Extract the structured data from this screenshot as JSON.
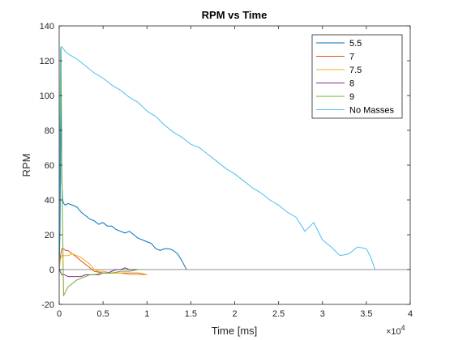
{
  "chart_data": {
    "type": "line",
    "title": "RPM vs Time",
    "xlabel": "Time [ms]",
    "ylabel": "RPM",
    "x_exponent": "×10^4",
    "xlim": [
      0,
      40000
    ],
    "ylim": [
      -20,
      140
    ],
    "x_ticks": [
      0,
      5000,
      10000,
      15000,
      20000,
      25000,
      30000,
      35000,
      40000
    ],
    "x_tick_labels": [
      "0",
      "0.5",
      "1",
      "1.5",
      "2",
      "2.5",
      "3",
      "3.5",
      "4"
    ],
    "y_ticks": [
      -20,
      0,
      20,
      40,
      60,
      80,
      100,
      120,
      140
    ],
    "y_tick_labels": [
      "-20",
      "0",
      "20",
      "40",
      "60",
      "80",
      "100",
      "120",
      "140"
    ],
    "grid": false,
    "legend_position": "top-right",
    "baseline": 0,
    "series": [
      {
        "name": "5.5",
        "color": "#0072bd",
        "x": [
          0,
          80,
          150,
          220,
          300,
          400,
          500,
          700,
          1000,
          1500,
          2000,
          2500,
          3000,
          3500,
          4000,
          4500,
          5000,
          5500,
          6000,
          6500,
          7000,
          7500,
          8000,
          8500,
          9000,
          9500,
          10000,
          10500,
          11000,
          11500,
          12000,
          12500,
          13000,
          13500,
          14000,
          14500
        ],
        "y": [
          0,
          20,
          60,
          100,
          50,
          40,
          38,
          37,
          38,
          37,
          36,
          33,
          31,
          29,
          28,
          26,
          27,
          25,
          25,
          23,
          22,
          21,
          22,
          20,
          18,
          17,
          16,
          15,
          12,
          11,
          12,
          12,
          11,
          9,
          5,
          0
        ]
      },
      {
        "name": "7",
        "color": "#d95319",
        "x": [
          0,
          150,
          300,
          500,
          700,
          1000,
          1500,
          2000,
          2500,
          3000,
          4000,
          5000,
          6000,
          7000,
          8000,
          9000,
          10000
        ],
        "y": [
          0,
          8,
          12,
          12,
          11,
          11,
          9,
          7,
          5,
          3,
          -1,
          -2,
          -2,
          -2,
          -2,
          -2,
          -3
        ]
      },
      {
        "name": "7.5",
        "color": "#edb120",
        "x": [
          0,
          150,
          300,
          600,
          1000,
          1500,
          2000,
          2500,
          3000,
          3500,
          4000,
          4500,
          5000,
          6000,
          7000,
          8000,
          9000,
          10000
        ],
        "y": [
          0,
          6,
          8,
          8,
          8,
          9,
          8,
          7,
          5,
          3,
          0,
          -1,
          -1,
          -2,
          -2,
          -3,
          -3,
          -3
        ]
      },
      {
        "name": "8",
        "color": "#7e2f8e",
        "x": [
          0,
          300,
          600,
          1000,
          1500,
          2000,
          2500,
          3000,
          3500,
          4000,
          4500,
          5000,
          5500,
          6000,
          6500,
          7000,
          7500,
          8000,
          8500,
          9000,
          9500,
          10000
        ],
        "y": [
          0,
          -3,
          -3,
          -4,
          -4,
          -4,
          -4,
          -3,
          -3,
          -3,
          -3,
          -2,
          -2,
          -1,
          0,
          0,
          1,
          0,
          0,
          0,
          0,
          0
        ]
      },
      {
        "name": "9",
        "color": "#77ac30",
        "x": [
          0,
          100,
          200,
          300,
          500,
          700,
          1000,
          1500,
          2000,
          2500,
          3000,
          3500,
          4000,
          5000,
          6000,
          7000,
          8000,
          9000,
          10000
        ],
        "y": [
          0,
          80,
          128,
          60,
          -15,
          -13,
          -10,
          -8,
          -6,
          -5,
          -4,
          -3,
          -3,
          -2,
          -2,
          -1,
          -1,
          0,
          0
        ]
      },
      {
        "name": "No Masses",
        "color": "#4dbeee",
        "x": [
          0,
          150,
          300,
          600,
          1000,
          2000,
          3000,
          4000,
          5000,
          6000,
          7000,
          8000,
          9000,
          10000,
          11000,
          12000,
          13000,
          14000,
          15000,
          16000,
          17000,
          18000,
          19000,
          20000,
          21000,
          22000,
          23000,
          24000,
          25000,
          26000,
          27000,
          28000,
          29000,
          30000,
          31000,
          32000,
          33000,
          34000,
          35000,
          35500,
          36000
        ],
        "y": [
          0,
          127,
          128,
          126,
          124,
          121,
          117,
          113,
          110,
          106,
          103,
          99,
          96,
          91,
          88,
          83,
          79,
          76,
          72,
          70,
          66,
          62,
          58,
          55,
          51,
          47,
          44,
          40,
          37,
          33,
          30,
          22,
          27,
          17,
          13,
          8,
          9,
          13,
          12,
          7,
          0
        ]
      }
    ]
  }
}
